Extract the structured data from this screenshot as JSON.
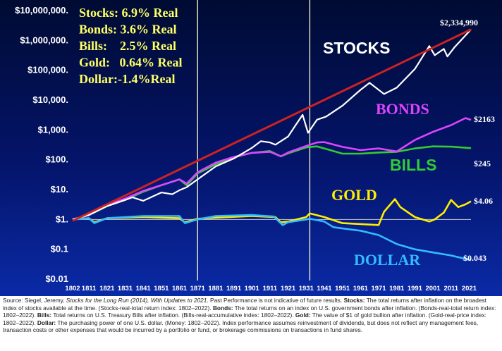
{
  "chart_data": {
    "type": "line",
    "x_range": [
      1802,
      2022
    ],
    "y_scale": "log",
    "ylim": [
      0.01,
      10000000
    ],
    "y_ticks": [
      {
        "value": 10000000,
        "label": "$10,000,000."
      },
      {
        "value": 1000000,
        "label": "$1,000,000."
      },
      {
        "value": 100000,
        "label": "$100,000."
      },
      {
        "value": 10000,
        "label": "$10,000."
      },
      {
        "value": 1000,
        "label": "$1,000."
      },
      {
        "value": 100,
        "label": "$100."
      },
      {
        "value": 10,
        "label": "$10."
      },
      {
        "value": 1,
        "label": "$1."
      },
      {
        "value": 0.1,
        "label": "$0.1"
      },
      {
        "value": 0.01,
        "label": "$0.01"
      }
    ],
    "x_ticks": [
      "1802",
      "1811",
      "1821",
      "1831",
      "1841",
      "1851",
      "1861",
      "1871",
      "1881",
      "1891",
      "1901",
      "1911",
      "1921",
      "1931",
      "1941",
      "1951",
      "1961",
      "1971",
      "1981",
      "1991",
      "2001",
      "2011",
      "2021"
    ],
    "vertical_markers": [
      1871,
      1933
    ],
    "stats": [
      "Stocks: 6.9% Real",
      "Bonds: 3.6% Real",
      "Bills:    2.5% Real",
      "Gold:   0.64% Real",
      "Dollar:-1.4%Real"
    ],
    "trendline": {
      "color": "#cc2222",
      "x": [
        1802,
        2022
      ],
      "y": [
        0.9,
        2334990
      ]
    },
    "series": [
      {
        "name": "STOCKS",
        "color": "#ffffff",
        "label_color": "#ffffff",
        "end_label": "$2,334,990",
        "x": [
          1802,
          1811,
          1821,
          1831,
          1835,
          1841,
          1851,
          1857,
          1861,
          1865,
          1871,
          1881,
          1891,
          1901,
          1906,
          1911,
          1914,
          1921,
          1925,
          1929,
          1932,
          1937,
          1942,
          1951,
          1961,
          1966,
          1974,
          1981,
          1991,
          1999,
          2002,
          2007,
          2009,
          2013,
          2021,
          2022
        ],
        "y": [
          1,
          1.4,
          2.8,
          4.5,
          5.5,
          4.2,
          8,
          7,
          9.5,
          12,
          22,
          60,
          110,
          250,
          420,
          380,
          320,
          600,
          1400,
          3200,
          800,
          2200,
          2800,
          6500,
          22000,
          38000,
          16000,
          26000,
          110000,
          650000,
          320000,
          520000,
          290000,
          600000,
          2000000,
          2334990
        ]
      },
      {
        "name": "BONDS",
        "color": "#dd44ff",
        "label_color": "#dd44ff",
        "end_label": "$2163",
        "x": [
          1802,
          1811,
          1821,
          1831,
          1841,
          1851,
          1861,
          1865,
          1871,
          1881,
          1891,
          1901,
          1911,
          1917,
          1921,
          1931,
          1937,
          1941,
          1951,
          1961,
          1971,
          1981,
          1991,
          2001,
          2011,
          2019,
          2022
        ],
        "y": [
          1,
          1.4,
          3,
          5,
          9,
          14,
          22,
          16,
          38,
          80,
          125,
          170,
          185,
          130,
          175,
          290,
          380,
          390,
          270,
          210,
          240,
          190,
          460,
          860,
          1450,
          2500,
          2163
        ]
      },
      {
        "name": "BILLS",
        "color": "#33cc33",
        "label_color": "#33cc33",
        "end_label": "$245",
        "x": [
          1802,
          1811,
          1821,
          1831,
          1841,
          1851,
          1861,
          1865,
          1871,
          1881,
          1891,
          1901,
          1911,
          1917,
          1921,
          1931,
          1937,
          1941,
          1951,
          1961,
          1971,
          1981,
          1991,
          2001,
          2011,
          2022
        ],
        "y": [
          1,
          1.4,
          2.8,
          4.5,
          8.5,
          14,
          22,
          14,
          35,
          70,
          120,
          170,
          195,
          130,
          165,
          260,
          280,
          240,
          160,
          160,
          175,
          185,
          240,
          280,
          275,
          245
        ]
      },
      {
        "name": "GOLD",
        "color": "#ffee00",
        "label_color": "#ffee00",
        "end_label": "$4.06",
        "x": [
          1802,
          1811,
          1814,
          1821,
          1841,
          1861,
          1864,
          1871,
          1881,
          1901,
          1914,
          1917,
          1921,
          1931,
          1933,
          1941,
          1951,
          1961,
          1971,
          1974,
          1980,
          1983,
          1991,
          1999,
          2002,
          2007,
          2011,
          2015,
          2019,
          2022
        ],
        "y": [
          1,
          1.1,
          0.8,
          1.1,
          1.2,
          1.1,
          0.8,
          1.05,
          1.15,
          1.3,
          1.2,
          0.8,
          0.85,
          1.2,
          1.6,
          1.2,
          0.75,
          0.7,
          0.65,
          1.8,
          4.8,
          2.6,
          1.2,
          0.85,
          1.0,
          1.7,
          4.5,
          2.6,
          3.2,
          4.06
        ]
      },
      {
        "name": "DOLLAR",
        "color": "#33bbff",
        "label_color": "#33bbff",
        "end_label": "$0.043",
        "x": [
          1802,
          1811,
          1814,
          1821,
          1831,
          1841,
          1851,
          1861,
          1864,
          1871,
          1881,
          1901,
          1913,
          1918,
          1921,
          1931,
          1933,
          1941,
          1946,
          1951,
          1961,
          1971,
          1981,
          1991,
          2001,
          2011,
          2022
        ],
        "y": [
          1,
          1.1,
          0.75,
          1.1,
          1.2,
          1.3,
          1.3,
          1.3,
          0.75,
          1.0,
          1.3,
          1.4,
          1.25,
          0.65,
          0.8,
          1.0,
          1.05,
          0.85,
          0.55,
          0.5,
          0.42,
          0.3,
          0.15,
          0.1,
          0.078,
          0.062,
          0.043
        ]
      }
    ]
  },
  "source_note": {
    "text": "Source: Siegel, Jeremy, Stocks for the Long Run (2014), With Updates to 2021. Past Performance is not indicative of future results. Stocks: The total returns after inflation on the broadest index of stocks available at the time. (Stocks-real-total return index: 1802–2022). Bonds: The total returns on an index on U.S. government bonds after inflation. (Bonds-real-total return index: 1802–2022). Bills: Total returns on U.S. Treasury Bills after inflation. (Bills-real-accumulative index: 1802–2022). Gold: The value of $1 of gold bullion after inflation. (Gold-real-price index: 1802–2022). Dollar: The purchasing power of one U.S. dollar. (Money: 1802–2022). Index performance assumes reinvestment of dividends, but does not reflect any management fees, transaction costs or other expenses that would be incurred by a portfolio or fund, or brokerage commissions on transactions in fund shares.",
    "bold": [
      "Stocks:",
      "Bonds:",
      "Bills:",
      "Gold:",
      "Dollar:"
    ],
    "italic": [
      "Stocks for the Long Run (2014), With Updates to 2021"
    ]
  }
}
